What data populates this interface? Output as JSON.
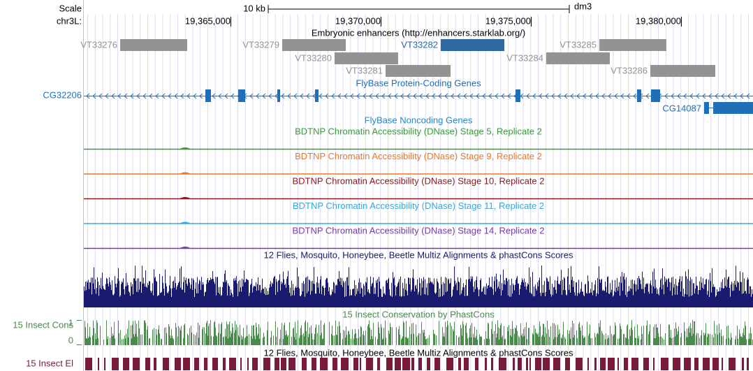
{
  "ruler": {
    "scale_label": "Scale",
    "scale_bar": "10 kb",
    "assembly": "dm3",
    "chrom": "chr3L:",
    "ticks": [
      "19,365,000",
      "19,370,000",
      "19,375,000",
      "19,380,000"
    ]
  },
  "tracks": {
    "enhancers": {
      "title": "Embryonic enhancers (http://enhancers.starklab.org/)",
      "features": [
        "VT33276",
        "VT33279",
        "VT33282",
        "VT33285",
        "VT33280",
        "VT33284",
        "VT33281",
        "VT33286"
      ]
    },
    "genes": {
      "title": "FlyBase Protein-Coding Genes",
      "features": [
        "CG32206",
        "CG14087"
      ]
    },
    "noncoding": {
      "title": "FlyBase Noncoding Genes"
    },
    "dnase": [
      "BDTNP Chromatin Accessibility (DNase) Stage 5, Replicate 2",
      "BDTNP Chromatin Accessibility (DNase) Stage 9, Replicate 2",
      "BDTNP Chromatin Accessibility (DNase) Stage 10, Replicate 2",
      "BDTNP Chromatin Accessibility (DNase) Stage 11, Replicate 2",
      "BDTNP Chromatin Accessibility (DNase) Stage 14, Replicate 2"
    ],
    "multiz": {
      "title": "12 Flies, Mosquito, Honeybee, Beetle Multiz Alignments & phastCons Scores"
    },
    "phastcons": {
      "title": "15 Insect Conservation by PhastCons",
      "label": "15 Insect Cons",
      "ymax": "1",
      "ymin": "0"
    },
    "elements": {
      "title": "12 Flies, Mosquito, Honeybee, Beetle Multiz Alignments & phastCons Scores",
      "label": "15 Insect El"
    }
  }
}
